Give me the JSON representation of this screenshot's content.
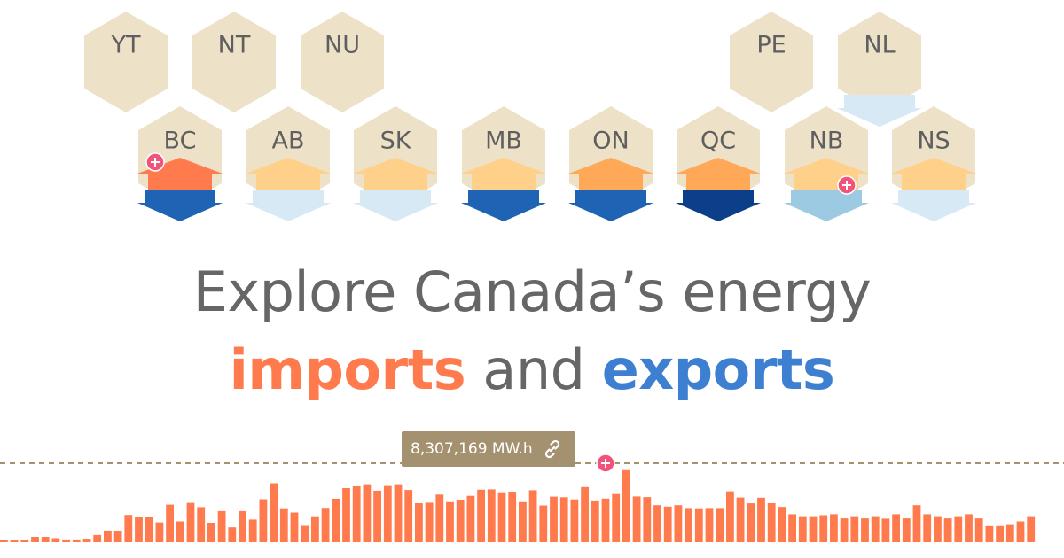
{
  "provinces_top_row": [
    "YT",
    "NT",
    "NU",
    "PE",
    "NL"
  ],
  "provinces_main_row": [
    "BC",
    "AB",
    "SK",
    "MB",
    "ON",
    "QC",
    "NB",
    "NS"
  ],
  "colors": {
    "hex_fill": "#ede1c8",
    "import_strong": "#ff7a4d",
    "import_medium": "#ffa858",
    "import_light": "#ffd08a",
    "export_darkest": "#0b3f8a",
    "export_dark": "#1f63b4",
    "export_medium": "#9ccae3",
    "export_light": "#d6e9f5",
    "headline_gray": "#666666",
    "marker_pink": "#f0547a",
    "tooltip_bg": "#a4916f",
    "reference_line": "#a4916f",
    "bar": "#ff7a4d"
  },
  "headline": {
    "line1": "Explore Canada’s energy",
    "imports_word": "imports",
    "and_word": "and",
    "exports_word": "exports"
  },
  "tooltip": {
    "value_label": "8,307,169 MW.h",
    "icon": "link-icon"
  },
  "chart_data": {
    "type": "bar",
    "unit": "MW.h",
    "reference_value": 8307169,
    "values": [
      140000,
      140000,
      180000,
      560000,
      560000,
      420000,
      200000,
      200000,
      330000,
      760000,
      1220000,
      1190000,
      2780000,
      2610000,
      2610000,
      2090000,
      3960000,
      2190000,
      4140000,
      3700000,
      2040000,
      3280000,
      1570000,
      3280000,
      2390000,
      4530000,
      6210000,
      3480000,
      3130000,
      1730000,
      2640000,
      3530000,
      4580000,
      5690000,
      5880000,
      6010000,
      5420000,
      5920000,
      6010000,
      5500000,
      4110000,
      4160000,
      5010000,
      4220000,
      4450000,
      4880000,
      5530000,
      5560000,
      5160000,
      5300000,
      4220000,
      5470000,
      3870000,
      4800000,
      4730000,
      4510000,
      5810000,
      4300000,
      4590000,
      5070000,
      7580000,
      4820000,
      4750000,
      3900000,
      3750000,
      3900000,
      3510000,
      3480000,
      3510000,
      3510000,
      5360000,
      4700000,
      4100000,
      4690000,
      4110000,
      3720000,
      2950000,
      2650000,
      2650000,
      2750000,
      2950000,
      2510000,
      2650000,
      2510000,
      2650000,
      2480000,
      2950000,
      2510000,
      3900000,
      2950000,
      2650000,
      2510000,
      2650000,
      2950000,
      2510000,
      1700000,
      1700000,
      1810000,
      2190000,
      2650000
    ]
  }
}
